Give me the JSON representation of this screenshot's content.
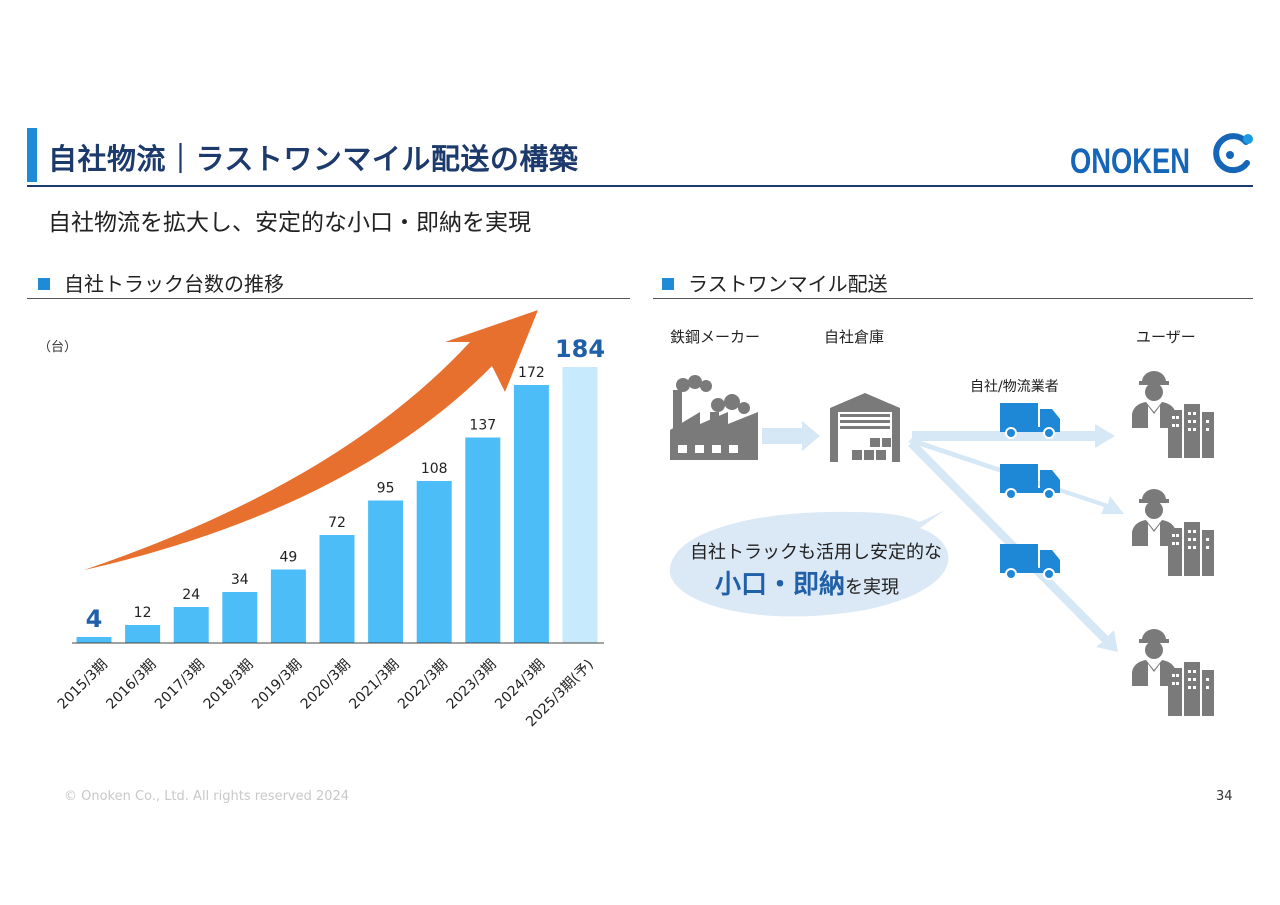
{
  "header": {
    "title": "自社物流｜ラストワンマイル配送の構築",
    "subtitle": "自社物流を拡大し、安定的な小口・即納を実現",
    "logo_text": "ONOKEN"
  },
  "left_section": {
    "heading": "自社トラック台数の推移",
    "unit": "（台）"
  },
  "right_section": {
    "heading": "ラストワンマイル配送",
    "label_maker": "鉄鋼メーカー",
    "label_warehouse": "自社倉庫",
    "label_carrier": "自社/物流業者",
    "label_user": "ユーザー",
    "bubble_line1": "自社トラックも活用し安定的な",
    "bubble_strong": "小口・即納",
    "bubble_rest": "を実現"
  },
  "footer": {
    "copyright": "© Onoken Co., Ltd. All rights reserved 2024",
    "page": "34"
  },
  "colors": {
    "brand_navy": "#1c3a6b",
    "accent_blue": "#1f8ad6",
    "bar_blue": "#4dbdf7",
    "bar_forecast": "#c8eafd",
    "arrow_orange": "#e8702e",
    "icon_gray": "#7a7a7a",
    "truck_blue": "#1e88d6"
  },
  "chart_data": {
    "type": "bar",
    "categories": [
      "2015/3期",
      "2016/3期",
      "2017/3期",
      "2018/3期",
      "2019/3期",
      "2020/3期",
      "2021/3期",
      "2022/3期",
      "2023/3期",
      "2024/3期",
      "2025/3期(予)"
    ],
    "values": [
      4,
      12,
      24,
      34,
      49,
      72,
      95,
      108,
      137,
      172,
      184
    ],
    "ylabel": "（台）",
    "ylim": [
      0,
      200
    ],
    "forecast_index": 10,
    "highlighted_labels": [
      0,
      10
    ],
    "trend_arrow": true
  }
}
